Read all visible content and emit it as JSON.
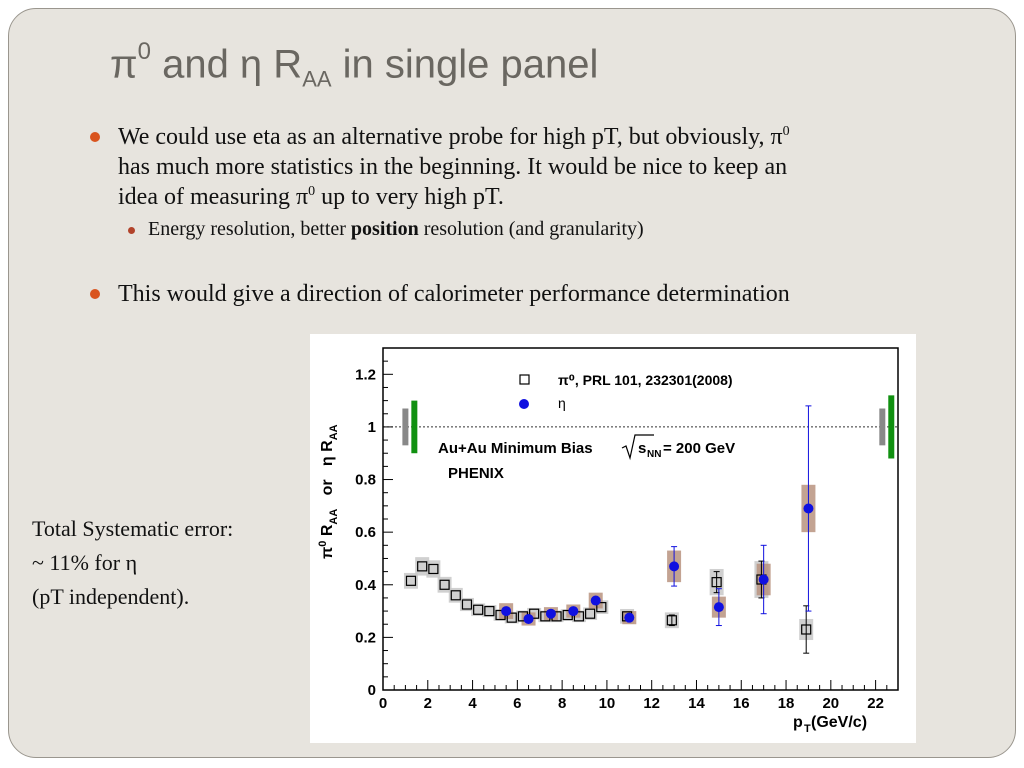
{
  "slide": {
    "title_pi": "π",
    "title_sup": "0",
    "title_mid": " and η R",
    "title_sub": "AA",
    "title_end": " in single panel",
    "bullet1_a": "We could use eta as an alternative probe for high pT, but obviously, π",
    "bullet1_sup1": "0",
    "bullet1_b": "has much more statistics in the beginning. It would be nice to keep an",
    "bullet1_c": "idea of measuring π",
    "bullet1_sup2": "0",
    "bullet1_d": " up to very high pT.",
    "sub_a": "Energy resolution, better ",
    "sub_bold": "position",
    "sub_b": " resolution (and granularity)",
    "bullet2": "This would give a direction of calorimeter performance determination",
    "note_line1": "Total Systematic error:",
    "note_line2": " ~ 11% for η",
    "note_line3": "(pT independent).",
    "colors": {
      "bullet": "#d9541e",
      "sub_bullet": "#b2432b",
      "background": "#e7e4de",
      "title": "#6a6761"
    }
  },
  "chart_data": {
    "type": "scatter",
    "xlabel": "p",
    "xlabel_sub": "T",
    "xlabel_unit": " (GeV/c)",
    "ylabel_parts": [
      "π",
      "0",
      " R",
      "AA",
      "   or   ",
      "η R",
      "AA"
    ],
    "xlim": [
      0,
      23
    ],
    "ylim": [
      0,
      1.3
    ],
    "xticks": [
      "0",
      "2",
      "4",
      "6",
      "8",
      "10",
      "12",
      "14",
      "16",
      "18",
      "20",
      "22"
    ],
    "yticks": [
      "0",
      "0.2",
      "0.4",
      "0.6",
      "0.8",
      "1",
      "1.2"
    ],
    "reference_line": 1,
    "annotation1": "Au+Au Minimum Bias",
    "annotation_sqrt": "s",
    "annotation_sqrt_sub": "NN",
    "annotation_eq": " = 200 GeV",
    "annotation2": "PHENIX",
    "series": [
      {
        "name": "π⁰, PRL 101, 232301(2008)",
        "marker": "open-square",
        "color": "#000000",
        "sys_color": "#c8c8c8",
        "points": [
          {
            "x": 1.25,
            "y": 0.415,
            "sys": 0.03
          },
          {
            "x": 1.75,
            "y": 0.47,
            "sys": 0.035
          },
          {
            "x": 2.25,
            "y": 0.46,
            "sys": 0.033
          },
          {
            "x": 2.75,
            "y": 0.4,
            "sys": 0.03
          },
          {
            "x": 3.25,
            "y": 0.36,
            "sys": 0.028
          },
          {
            "x": 3.75,
            "y": 0.325,
            "sys": 0.025
          },
          {
            "x": 4.25,
            "y": 0.305,
            "sys": 0.024
          },
          {
            "x": 4.75,
            "y": 0.3,
            "sys": 0.023
          },
          {
            "x": 5.25,
            "y": 0.285,
            "sys": 0.022
          },
          {
            "x": 5.75,
            "y": 0.275,
            "sys": 0.022
          },
          {
            "x": 6.25,
            "y": 0.28,
            "sys": 0.022
          },
          {
            "x": 6.75,
            "y": 0.29,
            "sys": 0.022
          },
          {
            "x": 7.25,
            "y": 0.28,
            "sys": 0.022
          },
          {
            "x": 7.75,
            "y": 0.28,
            "sys": 0.022
          },
          {
            "x": 8.25,
            "y": 0.285,
            "sys": 0.022
          },
          {
            "x": 8.75,
            "y": 0.28,
            "sys": 0.022
          },
          {
            "x": 9.25,
            "y": 0.29,
            "sys": 0.024
          },
          {
            "x": 9.75,
            "y": 0.315,
            "sys": 0.026
          },
          {
            "x": 10.9,
            "y": 0.28,
            "sys": 0.028
          },
          {
            "x": 12.9,
            "y": 0.265,
            "sys": 0.03,
            "err": 0.02
          },
          {
            "x": 14.9,
            "y": 0.41,
            "sys": 0.05,
            "err": 0.04
          },
          {
            "x": 16.9,
            "y": 0.42,
            "sys": 0.07,
            "err": 0.07
          },
          {
            "x": 18.9,
            "y": 0.23,
            "sys": 0.04,
            "err": 0.09
          }
        ]
      },
      {
        "name": "η",
        "marker": "filled-circle",
        "color": "#1010e0",
        "sys_color": "#b8937f",
        "points": [
          {
            "x": 5.5,
            "y": 0.3,
            "sys": 0.03
          },
          {
            "x": 6.5,
            "y": 0.27,
            "sys": 0.025
          },
          {
            "x": 7.5,
            "y": 0.29,
            "sys": 0.025
          },
          {
            "x": 8.5,
            "y": 0.3,
            "sys": 0.025
          },
          {
            "x": 9.5,
            "y": 0.34,
            "sys": 0.03
          },
          {
            "x": 11.0,
            "y": 0.275,
            "sys": 0.025
          },
          {
            "x": 13.0,
            "y": 0.47,
            "sys": 0.06,
            "err": 0.075
          },
          {
            "x": 15.0,
            "y": 0.315,
            "sys": 0.04,
            "err": 0.07
          },
          {
            "x": 17.0,
            "y": 0.42,
            "sys": 0.06,
            "err": 0.13
          },
          {
            "x": 19.0,
            "y": 0.69,
            "sys": 0.09,
            "err": 0.39
          }
        ]
      }
    ],
    "norm_boxes": [
      {
        "x": 1.0,
        "half": 0.07,
        "color": "#888888"
      },
      {
        "x": 1.4,
        "half": 0.1,
        "color": "#109010"
      },
      {
        "x": 22.3,
        "half": 0.07,
        "color": "#888888"
      },
      {
        "x": 22.7,
        "half": 0.12,
        "color": "#109010"
      }
    ]
  }
}
